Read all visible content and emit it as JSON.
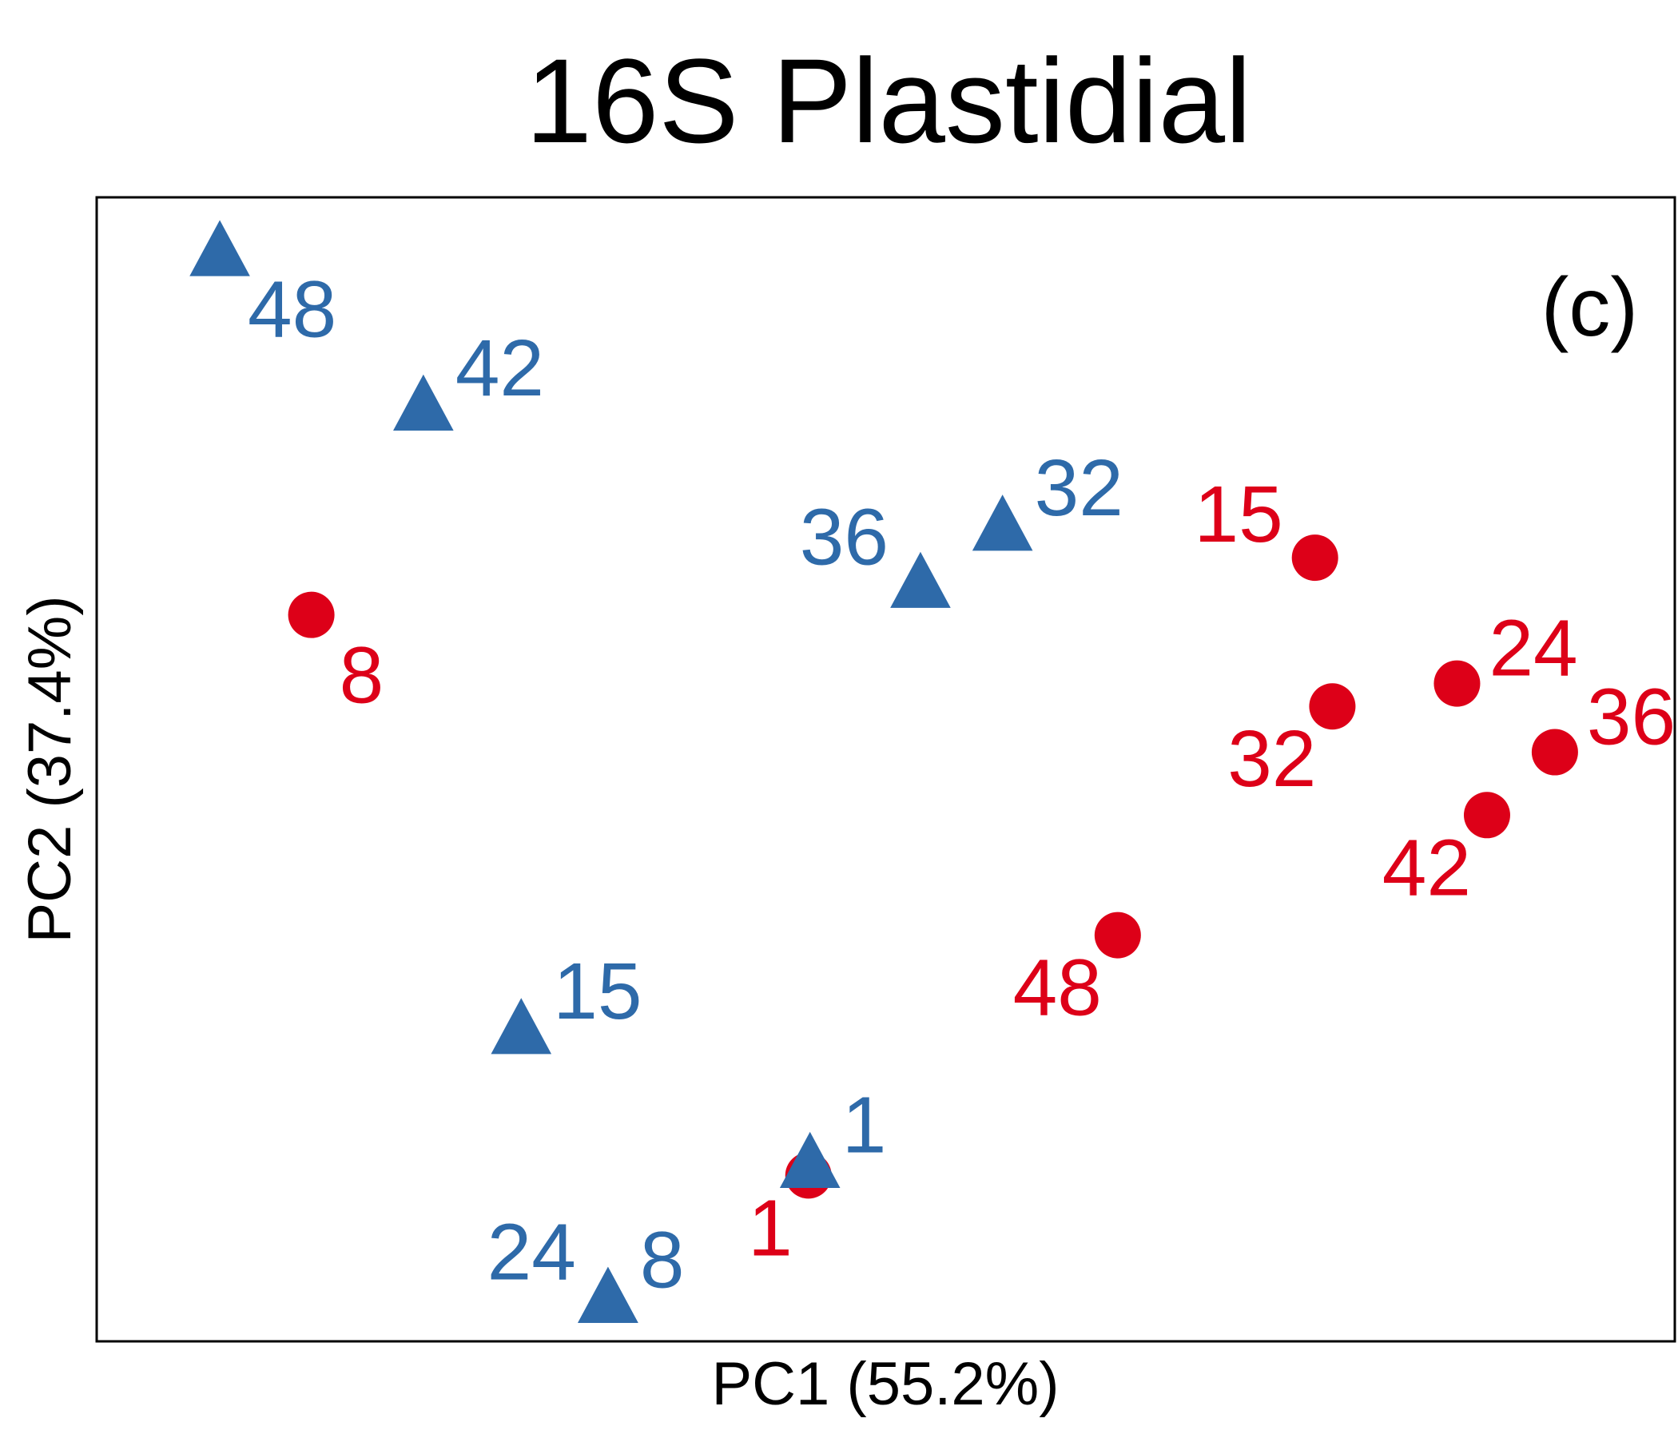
{
  "chart_data": {
    "type": "scatter",
    "title": "16S Plastidial",
    "xlabel": "PC1 (55.2%)",
    "ylabel": "PC2 (37.4%)",
    "panel_label": "(c)",
    "xlim": [
      0,
      100
    ],
    "ylim": [
      0,
      100
    ],
    "ticks": false,
    "grid": false,
    "series": [
      {
        "name": "blue",
        "color": "#2e6aa9",
        "marker": "triangle",
        "points": [
          {
            "label": "48",
            "x": 7.8,
            "y": 95.5,
            "anchor": "below-right"
          },
          {
            "label": "42",
            "x": 20.7,
            "y": 82.0,
            "anchor": "upper-right"
          },
          {
            "label": "32",
            "x": 57.4,
            "y": 71.5,
            "anchor": "upper-right"
          },
          {
            "label": "36",
            "x": 52.2,
            "y": 66.5,
            "anchor": "upper-left"
          },
          {
            "label": "15",
            "x": 26.9,
            "y": 27.5,
            "anchor": "upper-right"
          },
          {
            "label": "1",
            "x": 45.2,
            "y": 15.8,
            "anchor": "upper-right"
          },
          {
            "label": "24",
            "x": 32.4,
            "y": 4.0,
            "anchor": "upper-left"
          },
          {
            "label": "8",
            "x": 32.4,
            "y": 4.0,
            "anchor": "upper-right"
          }
        ]
      },
      {
        "name": "red",
        "color": "#dd0018",
        "marker": "circle",
        "points": [
          {
            "label": "15",
            "x": 77.2,
            "y": 68.5,
            "anchor": "upper-left"
          },
          {
            "label": "8",
            "x": 13.6,
            "y": 63.5,
            "anchor": "below-right"
          },
          {
            "label": "24",
            "x": 86.2,
            "y": 57.5,
            "anchor": "upper-right"
          },
          {
            "label": "32",
            "x": 78.3,
            "y": 55.5,
            "anchor": "below-left"
          },
          {
            "label": "36",
            "x": 92.4,
            "y": 51.5,
            "anchor": "upper-right"
          },
          {
            "label": "42",
            "x": 88.1,
            "y": 46.0,
            "anchor": "below-left"
          },
          {
            "label": "48",
            "x": 64.7,
            "y": 35.5,
            "anchor": "below-left"
          },
          {
            "label": "1",
            "x": 45.1,
            "y": 14.5,
            "anchor": "below-left"
          }
        ]
      }
    ]
  }
}
